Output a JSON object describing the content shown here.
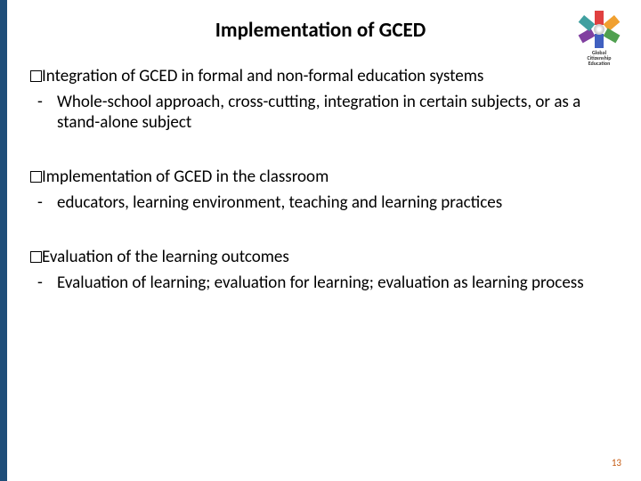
{
  "title": "Implementation of GCED",
  "title_fontsize": 23,
  "title_color": "#000000",
  "left_bar_color": "#1f4e79",
  "body_fontsize": 19,
  "body_color": "#000000",
  "logo": {
    "line1": "Global",
    "line2": "Citizenship",
    "line3": "Education",
    "figure_colors": [
      "#e04040",
      "#f0a030",
      "#50a050",
      "#4060c0",
      "#8040a0",
      "#40a0a0"
    ]
  },
  "sections": [
    {
      "heading": "Integration of GCED in formal and non-formal education systems",
      "sub": "Whole-school approach, cross-cutting, integration in certain subjects, or as a stand-alone subject"
    },
    {
      "heading": "Implementation of GCED in the classroom",
      "sub": "educators, learning environment, teaching and learning practices"
    },
    {
      "heading": "Evaluation of the learning outcomes",
      "sub": "Evaluation of learning; evaluation for learning; evaluation as learning process"
    }
  ],
  "page_number": "13",
  "page_number_color": "#c55a11"
}
